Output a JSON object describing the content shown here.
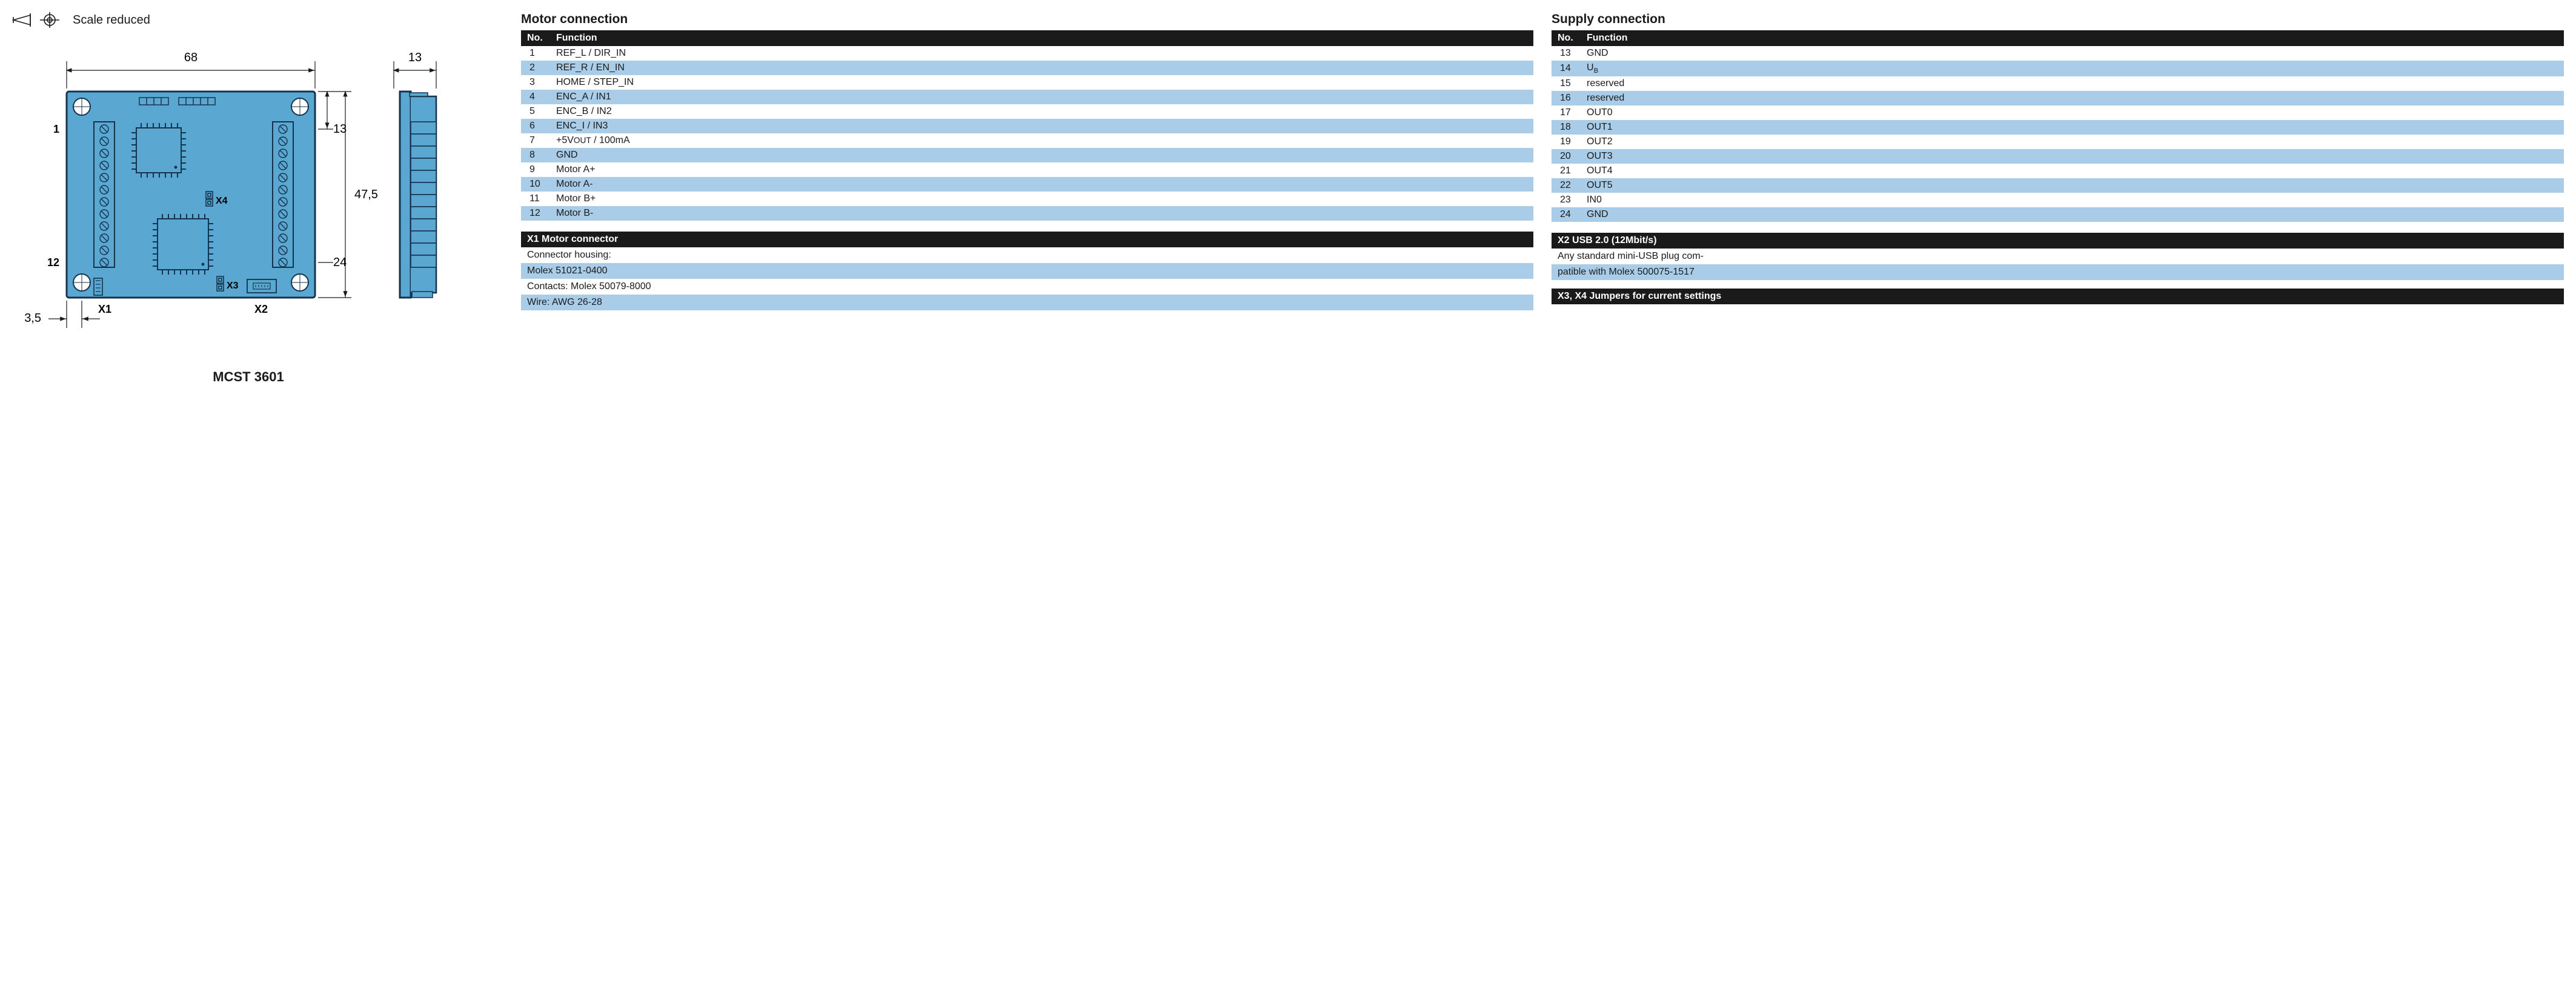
{
  "colors": {
    "pcb_fill": "#5aa7d1",
    "pcb_stroke": "#14334d",
    "stripe": "#a9cde9",
    "hdr_bg": "#1a1a1a",
    "hdr_fg": "#ffffff",
    "text": "#1a1a1a"
  },
  "scale_note": "Scale reduced",
  "product_name": "MCST 3601",
  "dimensions": {
    "width_mm": "68",
    "side_width_mm": "13",
    "height_mm": "47,5",
    "top_to_pin1_mm": "13",
    "pin24_label": "24",
    "mount_offset_mm": "3,5"
  },
  "pin_labels": {
    "left_top": "1",
    "left_bottom": "12",
    "x1": "X1",
    "x2": "X2",
    "x3": "X3",
    "x4": "X4"
  },
  "motor_connection": {
    "title": "Motor connection",
    "columns": [
      "No.",
      "Function"
    ],
    "rows": [
      {
        "no": "1",
        "fn": "REF_L / DIR_IN"
      },
      {
        "no": "2",
        "fn": "REF_R / EN_IN"
      },
      {
        "no": "3",
        "fn": "HOME / STEP_IN"
      },
      {
        "no": "4",
        "fn": "ENC_A / IN1"
      },
      {
        "no": "5",
        "fn": "ENC_B / IN2"
      },
      {
        "no": "6",
        "fn": "ENC_I / IN3"
      },
      {
        "no": "7",
        "fn_html": "+5V<span class=\"smallcaps\">OUT</span> / 100mA"
      },
      {
        "no": "8",
        "fn": "GND"
      },
      {
        "no": "9",
        "fn": "Motor A+"
      },
      {
        "no": "10",
        "fn": "Motor A-"
      },
      {
        "no": "11",
        "fn": "Motor B+"
      },
      {
        "no": "12",
        "fn": "Motor B-"
      }
    ]
  },
  "supply_connection": {
    "title": "Supply connection",
    "columns": [
      "No.",
      "Function"
    ],
    "rows": [
      {
        "no": "13",
        "fn": "GND"
      },
      {
        "no": "14",
        "fn_html": "U<sub>B</sub>"
      },
      {
        "no": "15",
        "fn": "reserved"
      },
      {
        "no": "16",
        "fn": "reserved"
      },
      {
        "no": "17",
        "fn": "OUT0"
      },
      {
        "no": "18",
        "fn": "OUT1"
      },
      {
        "no": "19",
        "fn": "OUT2"
      },
      {
        "no": "20",
        "fn": "OUT3"
      },
      {
        "no": "21",
        "fn": "OUT4"
      },
      {
        "no": "22",
        "fn": "OUT5"
      },
      {
        "no": "23",
        "fn": "IN0"
      },
      {
        "no": "24",
        "fn": "GND"
      }
    ]
  },
  "x1_info": {
    "header": "X1 Motor connector",
    "rows": [
      "Connector housing:",
      "Molex 51021-0400",
      "Contacts: Molex 50079-8000",
      "Wire: AWG 26-28"
    ],
    "stripe_indices": [
      1,
      3
    ]
  },
  "x2_info": {
    "header": "X2 USB 2.0 (12Mbit/s)",
    "rows": [
      "Any standard mini-USB plug com-",
      "patible with Molex 500075-1517"
    ],
    "stripe_indices": [
      1
    ]
  },
  "x34_info": {
    "header": "X3, X4 Jumpers for current settings"
  }
}
